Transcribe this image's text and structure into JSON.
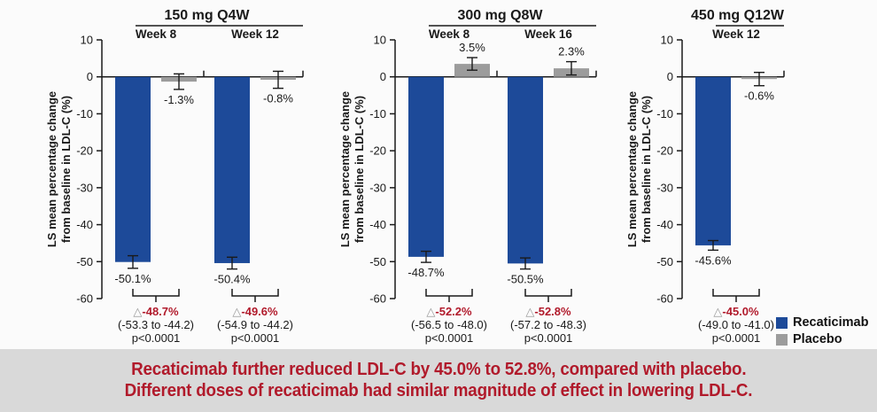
{
  "banner": {
    "line1": "Recaticimab further reduced LDL-C by 45.0% to 52.8%, compared with placebo.",
    "line2": "Different doses of recaticimab had similar magnitude of effect in lowering LDL-C."
  },
  "legend": {
    "items": [
      {
        "label": "Recaticimab",
        "color": "#1d4a99"
      },
      {
        "label": "Placebo",
        "color": "#9c9c9c"
      }
    ]
  },
  "colors": {
    "recaticimab": "#1d4a99",
    "placebo": "#9c9c9c",
    "delta_red": "#b11a2b",
    "banner_bg": "#d9d9d9",
    "axis": "#1a1a1a"
  },
  "y_axis": {
    "label_lines": [
      "LS mean percentage change",
      "from baseline in LDL-C (%)"
    ],
    "ticks": [
      10,
      0,
      -10,
      -20,
      -30,
      -40,
      -50,
      -60
    ],
    "max": 10,
    "min": -60
  },
  "chart_data": [
    {
      "type": "bar",
      "title": "150 mg Q4W",
      "categories": [
        "Week 8",
        "Week 12"
      ],
      "ylabel": "LS mean percentage change from baseline in LDL-C (%)",
      "ylim": [
        -60,
        10
      ],
      "grid": false,
      "series": [
        {
          "name": "Recaticimab",
          "values": [
            -50.1,
            -50.4
          ],
          "errors": [
            1.7,
            1.6
          ],
          "labels": [
            "-50.1%",
            "-50.4%"
          ]
        },
        {
          "name": "Placebo",
          "values": [
            -1.3,
            -0.8
          ],
          "errors": [
            2.1,
            2.3
          ],
          "labels": [
            "-1.3%",
            "-0.8%"
          ]
        }
      ],
      "annotations": [
        {
          "delta_symbol": "△",
          "delta": "-48.7%",
          "ci": "(-53.3 to -44.2)",
          "p": "p<0.0001"
        },
        {
          "delta_symbol": "△",
          "delta": "-49.6%",
          "ci": "(-54.9 to -44.2)",
          "p": "p<0.0001"
        }
      ]
    },
    {
      "type": "bar",
      "title": "300 mg Q8W",
      "categories": [
        "Week 8",
        "Week 16"
      ],
      "ylabel": "LS mean percentage change from baseline in LDL-C (%)",
      "ylim": [
        -60,
        10
      ],
      "grid": false,
      "series": [
        {
          "name": "Recaticimab",
          "values": [
            -48.7,
            -50.5
          ],
          "errors": [
            1.5,
            1.5
          ],
          "labels": [
            "-48.7%",
            "-50.5%"
          ]
        },
        {
          "name": "Placebo",
          "values": [
            3.5,
            2.3
          ],
          "errors": [
            1.7,
            1.8
          ],
          "labels": [
            "3.5%",
            "2.3%"
          ]
        }
      ],
      "annotations": [
        {
          "delta_symbol": "△",
          "delta": "-52.2%",
          "ci": "(-56.5 to -48.0)",
          "p": "p<0.0001"
        },
        {
          "delta_symbol": "△",
          "delta": "-52.8%",
          "ci": "(-57.2 to -48.3)",
          "p": "p<0.0001"
        }
      ]
    },
    {
      "type": "bar",
      "title": "450 mg Q12W",
      "categories": [
        "Week 12"
      ],
      "ylabel": "LS mean percentage change from baseline in LDL-C (%)",
      "ylim": [
        -60,
        10
      ],
      "grid": false,
      "series": [
        {
          "name": "Recaticimab",
          "values": [
            -45.6
          ],
          "errors": [
            1.3
          ],
          "labels": [
            "-45.6%"
          ]
        },
        {
          "name": "Placebo",
          "values": [
            -0.6
          ],
          "errors": [
            1.8
          ],
          "labels": [
            "-0.6%"
          ]
        }
      ],
      "annotations": [
        {
          "delta_symbol": "△",
          "delta": "-45.0%",
          "ci": "(-49.0 to -41.0)",
          "p": "p<0.0001"
        }
      ]
    }
  ]
}
